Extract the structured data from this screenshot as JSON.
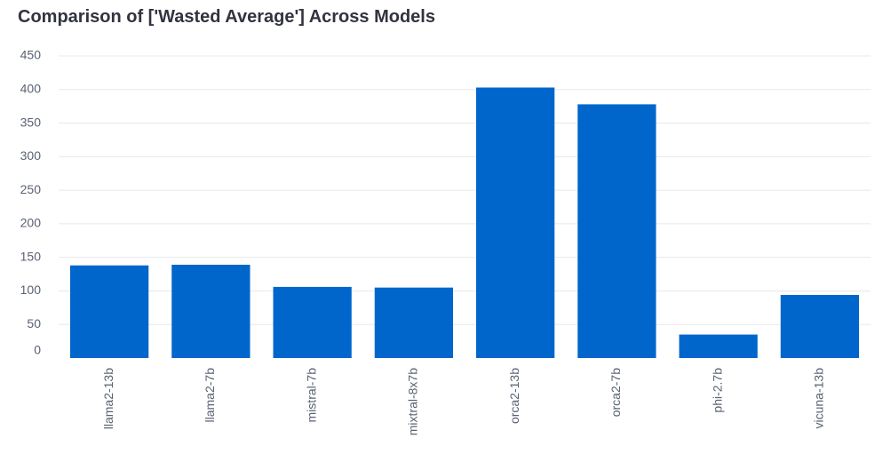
{
  "chart_data": {
    "type": "bar",
    "title": "Comparison of ['Wasted Average'] Across Models",
    "xlabel": "",
    "ylabel": "",
    "categories": [
      "llama2-13b",
      "llama2-7b",
      "mistral-7b",
      "mixtral-8x7b",
      "orca2-13b",
      "orca2-7b",
      "phi-2.7b",
      "vicuna-13b"
    ],
    "values": [
      138,
      139,
      106,
      105,
      403,
      378,
      35,
      94
    ],
    "ylim": [
      0,
      450
    ],
    "yticks": [
      0,
      50,
      100,
      150,
      200,
      250,
      300,
      350,
      400,
      450
    ],
    "grid": true,
    "legend": "none",
    "bar_color": "#0066cc",
    "grid_color": "#e8e8ec"
  }
}
